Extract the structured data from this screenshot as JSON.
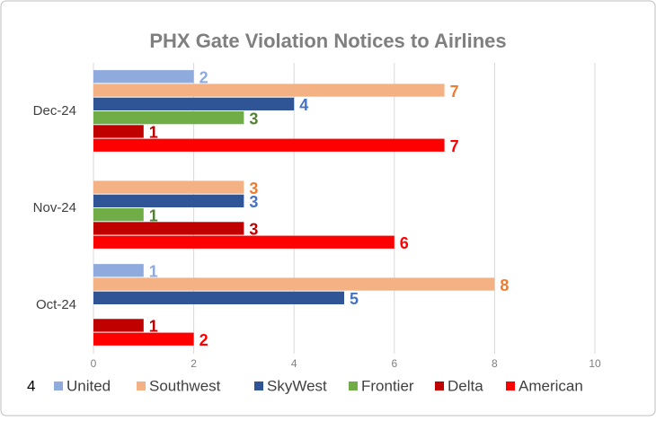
{
  "chart_data": {
    "type": "barh",
    "title": "PHX Gate Violation Notices to Airlines",
    "categories": [
      "Oct-24",
      "Nov-24",
      "Dec-24"
    ],
    "series": [
      {
        "name": "United",
        "color": "#8faadc",
        "label_color": "#8faadc",
        "values": [
          1,
          null,
          2
        ]
      },
      {
        "name": "Southwest",
        "color": "#f4b183",
        "label_color": "#ed7d31",
        "values": [
          8,
          3,
          7
        ]
      },
      {
        "name": "SkyWest",
        "color": "#2f5597",
        "label_color": "#4472c4",
        "values": [
          5,
          3,
          4
        ]
      },
      {
        "name": "Frontier",
        "color": "#70ad47",
        "label_color": "#548235",
        "values": [
          null,
          1,
          3
        ]
      },
      {
        "name": "Delta",
        "color": "#c00000",
        "label_color": "#c00000",
        "values": [
          1,
          3,
          1
        ]
      },
      {
        "name": "American",
        "color": "#ff0000",
        "label_color": "#ff0000",
        "values": [
          2,
          6,
          7
        ]
      }
    ],
    "xlim": [
      0,
      10
    ],
    "xticks": [
      0,
      2,
      4,
      6,
      8,
      10
    ],
    "grid": true,
    "legend": "bottom",
    "annotation": "4"
  }
}
